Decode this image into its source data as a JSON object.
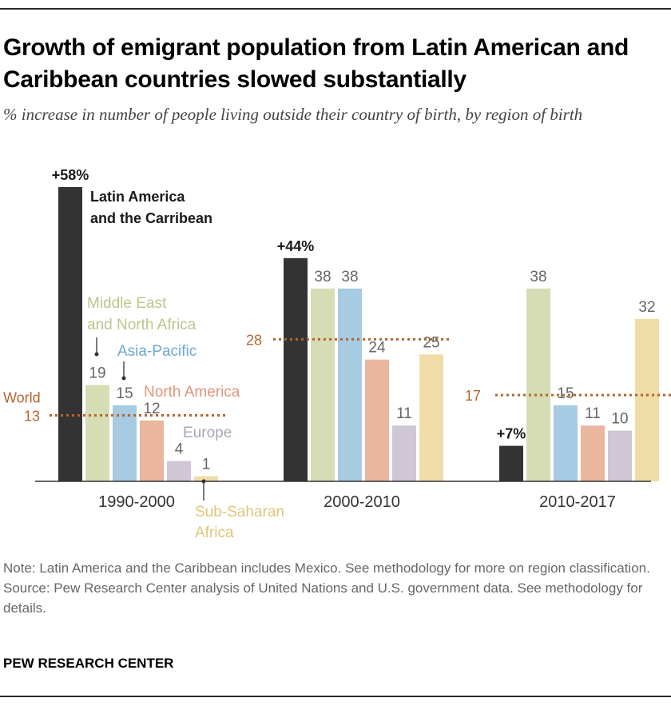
{
  "title": "Growth of emigrant population from Latin American and Caribbean countries slowed substantially",
  "subtitle": "% increase in number of people living outside their country of birth, by region of birth",
  "notes": {
    "note": "Note: Latin America and the Caribbean includes Mexico. See methodology for more on region classification.",
    "source": "Source: Pew Research Center analysis of United Nations and U.S. government data. See methodology for details.",
    "brand": "PEW RESEARCH CENTER"
  },
  "chart_data": {
    "type": "bar",
    "categories": [
      "1990-2000",
      "2000-2010",
      "2010-2017"
    ],
    "series": [
      {
        "name": "Latin America and the Carribean",
        "color": "#333333",
        "values": [
          58,
          44,
          7
        ],
        "labels": [
          "+58%",
          "+44%",
          "+7%"
        ]
      },
      {
        "name": "Middle East and North Africa",
        "color": "#d6dcb4",
        "values": [
          19,
          38,
          38
        ],
        "labels": [
          "19",
          "38",
          "38"
        ]
      },
      {
        "name": "Asia-Pacific",
        "color": "#a6cbe2",
        "values": [
          15,
          38,
          15
        ],
        "labels": [
          "15",
          "38",
          "15"
        ]
      },
      {
        "name": "North America",
        "color": "#ebb69e",
        "values": [
          12,
          24,
          11
        ],
        "labels": [
          "12",
          "24",
          "11"
        ]
      },
      {
        "name": "Europe",
        "color": "#cfc7d3",
        "values": [
          4,
          11,
          10
        ],
        "labels": [
          "4",
          "11",
          "10"
        ]
      },
      {
        "name": "Sub-Saharan Africa",
        "color": "#efdca6",
        "values": [
          1,
          25,
          32
        ],
        "labels": [
          "1",
          "25",
          "32"
        ]
      }
    ],
    "reference": {
      "name": "World",
      "color": "#b5652e",
      "values": [
        13,
        28,
        17
      ],
      "labels": [
        "13",
        "28",
        "17"
      ]
    },
    "series_labels": {
      "latam_line1": "Latin America",
      "latam_line2": "and the Carribean",
      "mena_line1": "Middle East",
      "mena_line2": "and North Africa",
      "asia": "Asia-Pacific",
      "na": "North America",
      "europe": "Europe",
      "ssa_line1": "Sub-Saharan",
      "ssa_line2": "Africa",
      "world": "World"
    },
    "ylim": [
      0,
      58
    ],
    "grid": false,
    "legend": "direct labels"
  }
}
